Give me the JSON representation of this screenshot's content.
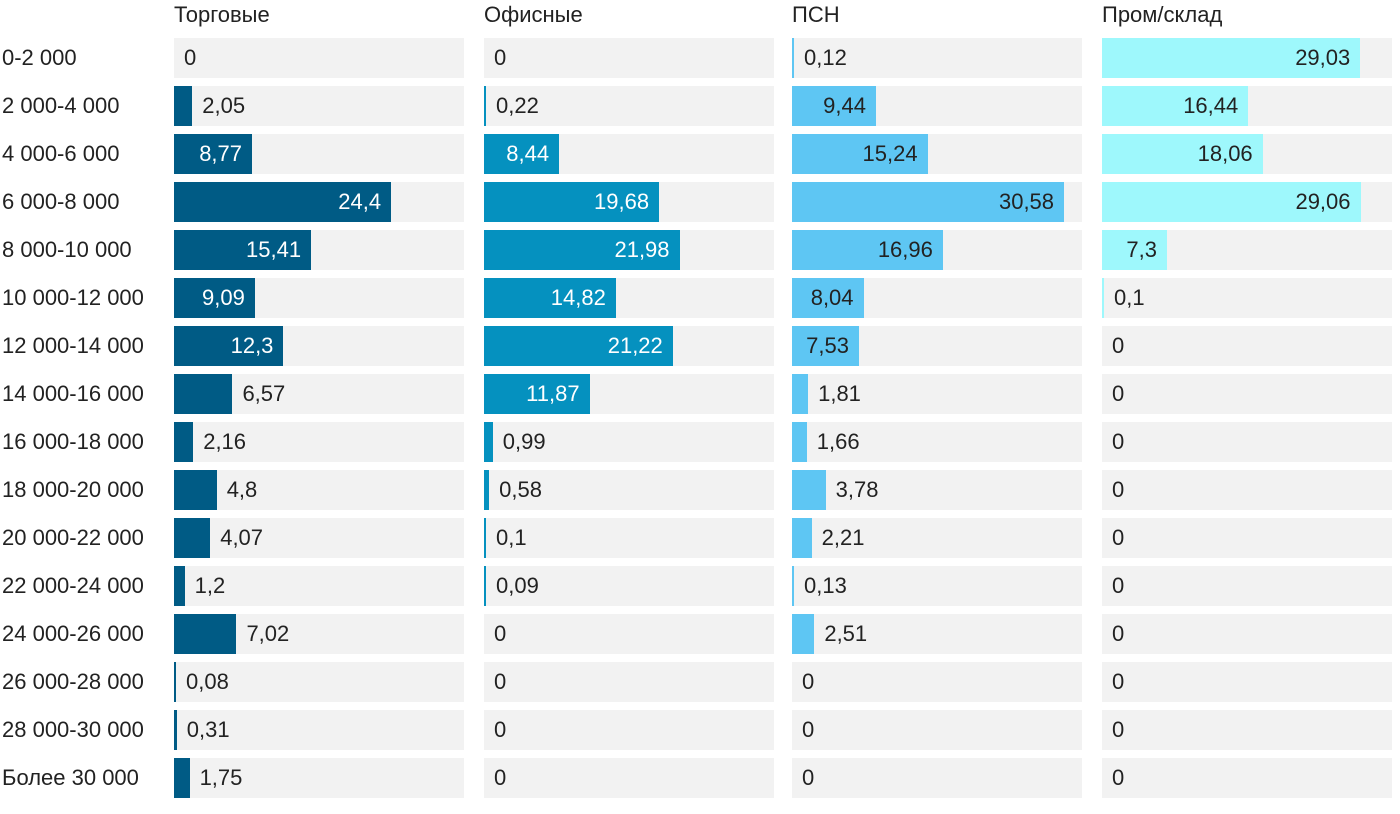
{
  "chart_data": {
    "type": "bar",
    "orientation": "horizontal",
    "layout": "small-multiples",
    "categories": [
      "0-2 000",
      "2 000-4 000",
      "4 000-6 000",
      "6 000-8 000",
      "8 000-10 000",
      "10 000-12 000",
      "12 000-14 000",
      "14 000-16 000",
      "16 000-18 000",
      "18 000-20 000",
      "20 000-22 000",
      "22 000-24 000",
      "24 000-26 000",
      "26 000-28 000",
      "28 000-30 000",
      "Более 30 000"
    ],
    "series": [
      {
        "name": "Торговые",
        "color": "#005b85",
        "values": [
          0,
          2.05,
          8.77,
          24.4,
          15.41,
          9.09,
          12.3,
          6.57,
          2.16,
          4.8,
          4.07,
          1.2,
          7.02,
          0.08,
          0.31,
          1.75
        ],
        "labels": [
          "0",
          "2,05",
          "8,77",
          "24,4",
          "15,41",
          "9,09",
          "12,3",
          "6,57",
          "2,16",
          "4,8",
          "4,07",
          "1,2",
          "7,02",
          "0,08",
          "0,31",
          "1,75"
        ]
      },
      {
        "name": "Офисные",
        "color": "#0591bf",
        "values": [
          0,
          0.22,
          8.44,
          19.68,
          21.98,
          14.82,
          21.22,
          11.87,
          0.99,
          0.58,
          0.1,
          0.09,
          0,
          0,
          0,
          0
        ],
        "labels": [
          "0",
          "0,22",
          "8,44",
          "19,68",
          "21,98",
          "14,82",
          "21,22",
          "11,87",
          "0,99",
          "0,58",
          "0,1",
          "0,09",
          "0",
          "0",
          "0",
          "0"
        ]
      },
      {
        "name": "ПСН",
        "color": "#5ec6f3",
        "values": [
          0.12,
          9.44,
          15.24,
          30.58,
          16.96,
          8.04,
          7.53,
          1.81,
          1.66,
          3.78,
          2.21,
          0.13,
          2.51,
          0,
          0,
          0
        ],
        "labels": [
          "0,12",
          "9,44",
          "15,24",
          "30,58",
          "16,96",
          "8,04",
          "7,53",
          "1,81",
          "1,66",
          "3,78",
          "2,21",
          "0,13",
          "2,51",
          "0",
          "0",
          "0"
        ]
      },
      {
        "name": "Пром/склад",
        "color": "#9ef8fc",
        "values": [
          29.03,
          16.44,
          18.06,
          29.06,
          7.3,
          0.1,
          0,
          0,
          0,
          0,
          0,
          0,
          0,
          0,
          0,
          0
        ],
        "labels": [
          "29,03",
          "16,44",
          "18,06",
          "29,06",
          "7,3",
          "0,1",
          "0",
          "0",
          "0",
          "0",
          "0",
          "0",
          "0",
          "0",
          "0",
          "0"
        ]
      }
    ],
    "xlim": [
      0,
      32.6
    ],
    "grid": false,
    "legend": "none"
  }
}
